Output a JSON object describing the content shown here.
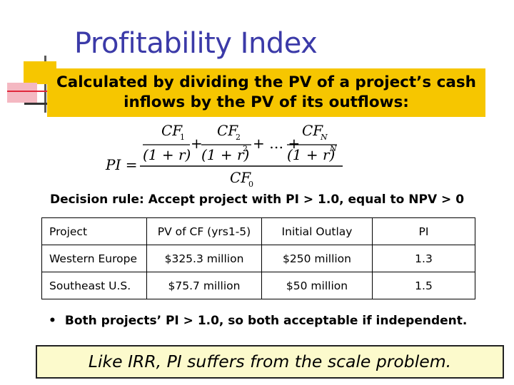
{
  "slide": {
    "title": "Profitability Index",
    "callout": {
      "line1": "Calculated by dividing the PV of a project’s cash",
      "line2": "inflows by the PV of its outflows:"
    },
    "formula": {
      "lhs": "PI =",
      "cf1": "CF",
      "cf1_sub": "1",
      "cf2": "CF",
      "cf2_sub": "2",
      "cfn": "CF",
      "cfn_sub": "N",
      "den1": "(1 + r)",
      "den2": "(1 + r)",
      "den2_exp": "2",
      "denn": "(1 + r)",
      "denn_exp": "N",
      "plus": "+",
      "ellipsis": "+ … +",
      "cf0": "CF",
      "cf0_sub": "0"
    },
    "decision_rule": "Decision rule: Accept project with PI > 1.0, equal to NPV > 0",
    "table": {
      "headers": [
        "Project",
        "PV of CF (yrs1-5)",
        "Initial Outlay",
        "PI"
      ],
      "rows": [
        [
          "Western Europe",
          "$325.3 million",
          "$250 million",
          "1.3"
        ],
        [
          "Southeast U.S.",
          "$75.7 million",
          "$50 million",
          "1.5"
        ]
      ]
    },
    "conclusion_bullet": "•",
    "conclusion": "Both projects’ PI > 1.0, so both acceptable if independent.",
    "bottom_note": "Like IRR, PI suffers from the scale problem."
  }
}
